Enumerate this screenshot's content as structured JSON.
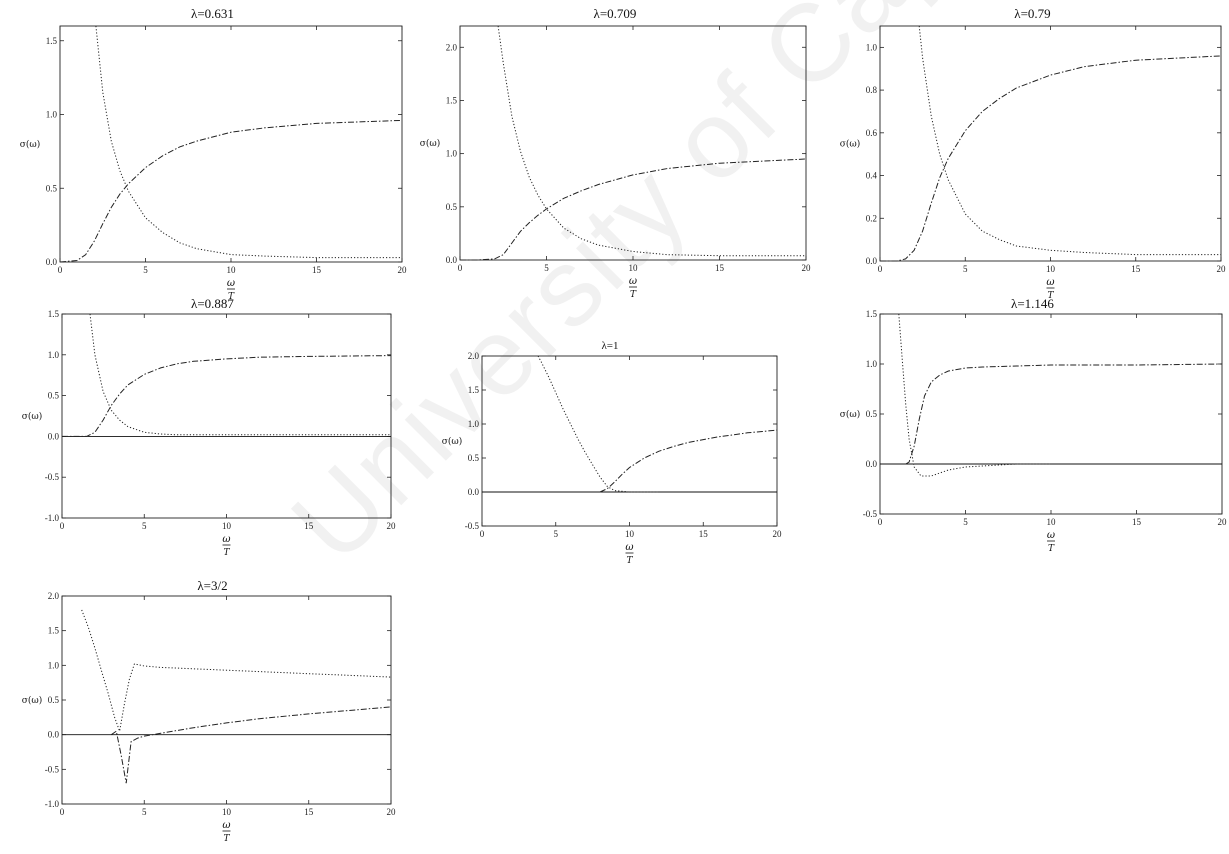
{
  "watermark": "University of Cape Town",
  "chart_data": [
    {
      "type": "line",
      "title": "λ=0.631",
      "ylabel": "σ(ω)",
      "xlabel_top": "ω",
      "xlabel_bottom": "T",
      "xlim": [
        0,
        20
      ],
      "ylim": [
        0,
        1.6
      ],
      "xticks": [
        0,
        5,
        10,
        15,
        20
      ],
      "yticks": [
        0.0,
        0.5,
        1.0,
        1.5
      ],
      "ytick_labels": [
        "0.0",
        "0.5",
        "1.0",
        "1.5"
      ],
      "series": [
        {
          "style": "dashed",
          "x": [
            0,
            1,
            1.5,
            2,
            2.5,
            3,
            3.5,
            4,
            5,
            6,
            7,
            8,
            10,
            12,
            15,
            20
          ],
          "y": [
            0,
            0.01,
            0.05,
            0.14,
            0.26,
            0.37,
            0.46,
            0.53,
            0.64,
            0.72,
            0.78,
            0.82,
            0.88,
            0.91,
            0.94,
            0.96
          ]
        },
        {
          "style": "dotted",
          "x": [
            2.1,
            2.5,
            3,
            3.5,
            4,
            5,
            6,
            7,
            8,
            10,
            12,
            15,
            20
          ],
          "y": [
            1.6,
            1.15,
            0.82,
            0.62,
            0.48,
            0.3,
            0.2,
            0.13,
            0.09,
            0.05,
            0.04,
            0.03,
            0.03
          ]
        }
      ]
    },
    {
      "type": "line",
      "title": "λ=0.709",
      "ylabel": "σ(ω)",
      "xlabel_top": "ω",
      "xlabel_bottom": "T",
      "xlim": [
        0,
        20
      ],
      "ylim": [
        0,
        2.2
      ],
      "xticks": [
        0,
        5,
        10,
        15,
        20
      ],
      "yticks": [
        0.0,
        0.5,
        1.0,
        1.5,
        2.0
      ],
      "ytick_labels": [
        "0.0",
        "0.5",
        "1.0",
        "1.5",
        "2.0"
      ],
      "series": [
        {
          "style": "dashed",
          "x": [
            0,
            1,
            2,
            2.5,
            3,
            3.5,
            4,
            4.5,
            5,
            6,
            7,
            8,
            10,
            12,
            15,
            20
          ],
          "y": [
            0,
            0,
            0.01,
            0.05,
            0.16,
            0.27,
            0.35,
            0.42,
            0.48,
            0.58,
            0.65,
            0.71,
            0.8,
            0.86,
            0.91,
            0.95
          ]
        },
        {
          "style": "dotted",
          "x": [
            2.2,
            2.5,
            3,
            3.5,
            4,
            4.5,
            5,
            6,
            7,
            8,
            10,
            12,
            15,
            20
          ],
          "y": [
            2.2,
            1.85,
            1.35,
            1.02,
            0.78,
            0.61,
            0.48,
            0.3,
            0.2,
            0.14,
            0.08,
            0.05,
            0.04,
            0.04
          ]
        }
      ]
    },
    {
      "type": "line",
      "title": "λ=0.79",
      "ylabel": "σ(ω)",
      "xlabel_top": "ω",
      "xlabel_bottom": "T",
      "xlim": [
        0,
        20
      ],
      "ylim": [
        0,
        1.1
      ],
      "xticks": [
        0,
        5,
        10,
        15,
        20
      ],
      "yticks": [
        0.0,
        0.2,
        0.4,
        0.6,
        0.8,
        1.0
      ],
      "ytick_labels": [
        "0.0",
        "0.2",
        "0.4",
        "0.6",
        "0.8",
        "1.0"
      ],
      "series": [
        {
          "style": "dashed",
          "x": [
            0,
            1,
            1.5,
            2,
            2.5,
            3,
            3.5,
            4,
            5,
            6,
            7,
            8,
            10,
            12,
            15,
            20
          ],
          "y": [
            0,
            0,
            0.01,
            0.05,
            0.14,
            0.27,
            0.39,
            0.48,
            0.61,
            0.7,
            0.76,
            0.81,
            0.87,
            0.91,
            0.94,
            0.96
          ]
        },
        {
          "style": "dotted",
          "x": [
            2.3,
            2.5,
            3,
            3.5,
            4,
            5,
            6,
            7,
            8,
            10,
            12,
            15,
            20
          ],
          "y": [
            1.1,
            0.95,
            0.68,
            0.5,
            0.38,
            0.22,
            0.14,
            0.1,
            0.07,
            0.05,
            0.04,
            0.03,
            0.03
          ]
        }
      ]
    },
    {
      "type": "line",
      "title": "λ=0.887",
      "ylabel": "σ(ω)",
      "xlabel_top": "ω",
      "xlabel_bottom": "T",
      "xlim": [
        0,
        20
      ],
      "ylim": [
        -1.0,
        1.5
      ],
      "xticks": [
        0,
        5,
        10,
        15,
        20
      ],
      "yticks": [
        -1.0,
        -0.5,
        0.0,
        0.5,
        1.0,
        1.5
      ],
      "ytick_labels": [
        "-1.0",
        "-0.5",
        "0.0",
        "0.5",
        "1.0",
        "1.5"
      ],
      "hline": 0,
      "series": [
        {
          "style": "dashed",
          "x": [
            0,
            1,
            1.5,
            2,
            2.5,
            3,
            3.5,
            4,
            5,
            6,
            7,
            8,
            10,
            12,
            15,
            20
          ],
          "y": [
            0,
            0,
            0,
            0.05,
            0.2,
            0.38,
            0.52,
            0.63,
            0.76,
            0.84,
            0.89,
            0.92,
            0.95,
            0.97,
            0.98,
            0.99
          ]
        },
        {
          "style": "dotted",
          "x": [
            1.7,
            2,
            2.5,
            3,
            3.5,
            4,
            5,
            6,
            7,
            8,
            10,
            15,
            20
          ],
          "y": [
            1.5,
            1.0,
            0.55,
            0.32,
            0.2,
            0.12,
            0.05,
            0.03,
            0.02,
            0.02,
            0.02,
            0.02,
            0.02
          ]
        }
      ]
    },
    {
      "type": "line",
      "title": "λ=1",
      "ylabel": "σ(ω)",
      "xlabel_top": "ω",
      "xlabel_bottom": "T",
      "xlim": [
        0,
        20
      ],
      "ylim": [
        -0.5,
        2.0
      ],
      "xticks": [
        0,
        5,
        10,
        15,
        20
      ],
      "yticks": [
        -0.5,
        0.0,
        0.5,
        1.0,
        1.5,
        2.0
      ],
      "ytick_labels": [
        "-0.5",
        "0.0",
        "0.5",
        "1.0",
        "1.5",
        "2.0"
      ],
      "hline": 0,
      "series": [
        {
          "style": "dashed",
          "x": [
            8,
            8.5,
            9,
            9.5,
            10,
            11,
            12,
            13,
            14,
            15,
            16,
            17,
            18,
            19,
            20
          ],
          "y": [
            0,
            0.05,
            0.15,
            0.26,
            0.36,
            0.5,
            0.6,
            0.67,
            0.73,
            0.77,
            0.81,
            0.84,
            0.87,
            0.89,
            0.91
          ]
        },
        {
          "style": "dotted",
          "x": [
            3.8,
            4,
            4.5,
            5,
            5.5,
            6,
            6.5,
            7,
            7.5,
            8,
            8.5,
            9,
            9.5,
            10,
            11,
            12
          ],
          "y": [
            2.0,
            1.92,
            1.7,
            1.46,
            1.22,
            1.0,
            0.78,
            0.58,
            0.4,
            0.22,
            0.08,
            0.02,
            0.01,
            0.0,
            0.0,
            0.0
          ]
        }
      ]
    },
    {
      "type": "line",
      "title": "λ=1.146",
      "ylabel": "σ(ω)",
      "xlabel_top": "ω",
      "xlabel_bottom": "T",
      "xlim": [
        0,
        20
      ],
      "ylim": [
        -0.5,
        1.5
      ],
      "xticks": [
        0,
        5,
        10,
        15,
        20
      ],
      "yticks": [
        -0.5,
        0.0,
        0.5,
        1.0,
        1.5
      ],
      "ytick_labels": [
        "-0.5",
        "0.0",
        "0.5",
        "1.0",
        "1.5"
      ],
      "hline": 0,
      "series": [
        {
          "style": "dashed",
          "x": [
            1.5,
            1.7,
            2,
            2.3,
            2.6,
            3,
            3.5,
            4,
            5,
            6,
            8,
            10,
            15,
            20
          ],
          "y": [
            0,
            0.02,
            0.18,
            0.45,
            0.68,
            0.82,
            0.89,
            0.93,
            0.96,
            0.97,
            0.98,
            0.99,
            0.99,
            1.0
          ]
        },
        {
          "style": "dotted",
          "x": [
            1.1,
            1.3,
            1.5,
            1.7,
            2,
            2.4,
            3,
            3.5,
            4,
            5,
            6,
            8,
            10
          ],
          "y": [
            1.5,
            1.05,
            0.6,
            0.25,
            -0.03,
            -0.12,
            -0.12,
            -0.09,
            -0.06,
            -0.03,
            -0.02,
            0,
            0
          ]
        }
      ]
    },
    {
      "type": "line",
      "title": "λ=3/2",
      "ylabel": "σ(ω)",
      "xlabel_top": "ω",
      "xlabel_bottom": "T",
      "xlim": [
        0,
        20
      ],
      "ylim": [
        -1.0,
        2.0
      ],
      "xticks": [
        0,
        5,
        10,
        15,
        20
      ],
      "yticks": [
        -1.0,
        -0.5,
        0.0,
        0.5,
        1.0,
        1.5,
        2.0
      ],
      "ytick_labels": [
        "-1.0",
        "-0.5",
        "0.0",
        "0.5",
        "1.0",
        "1.5",
        "2.0"
      ],
      "hline": 0,
      "series": [
        {
          "style": "dotted",
          "x": [
            1.2,
            1.6,
            2,
            2.4,
            2.8,
            3.2,
            3.5,
            3.8,
            4.1,
            4.4,
            5,
            6,
            8,
            10,
            12,
            15,
            18,
            20
          ],
          "y": [
            1.8,
            1.55,
            1.25,
            0.92,
            0.6,
            0.25,
            0.05,
            0.45,
            0.8,
            1.02,
            0.99,
            0.97,
            0.95,
            0.93,
            0.91,
            0.88,
            0.85,
            0.83
          ]
        },
        {
          "style": "dashed",
          "x": [
            3,
            3.3,
            3.6,
            3.9,
            4.2,
            4.6,
            5,
            5.5,
            6,
            7,
            8,
            10,
            12,
            15,
            18,
            20
          ],
          "y": [
            0.0,
            0.05,
            -0.3,
            -0.7,
            -0.1,
            -0.05,
            -0.02,
            0.0,
            0.02,
            0.06,
            0.1,
            0.17,
            0.23,
            0.3,
            0.36,
            0.4
          ]
        }
      ]
    }
  ]
}
